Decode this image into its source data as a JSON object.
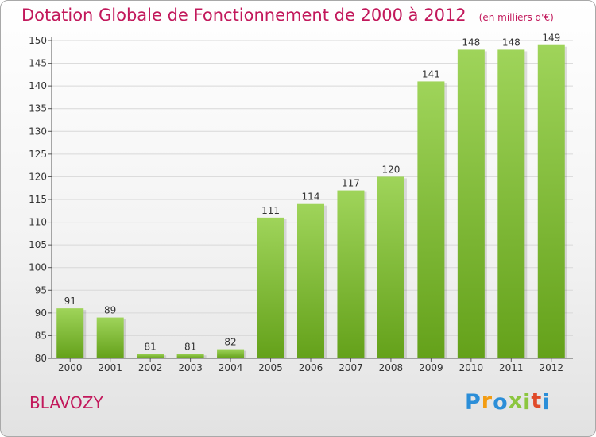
{
  "header": {
    "title": "Dotation Globale de Fonctionnement de 2000 à 2012",
    "unit": "(en milliers d'€)"
  },
  "footer": {
    "commune": "BLAVOZY",
    "logo": {
      "letters": [
        "P",
        "r",
        "o",
        "x",
        "i",
        "t",
        "i"
      ],
      "colors": [
        "#2b8ed8",
        "#f39c12",
        "#2b8ed8",
        "#8cc63f",
        "#8cc63f",
        "#e04b2a",
        "#2b8ed8"
      ]
    }
  },
  "colors": {
    "bar_light": "#9fd45a",
    "bar_dark": "#64a11a",
    "axis": "#555555",
    "grid": "#d8d8d8"
  },
  "chart_data": {
    "type": "bar",
    "title": "Dotation Globale de Fonctionnement de 2000 à 2012",
    "categories": [
      "2000",
      "2001",
      "2002",
      "2003",
      "2004",
      "2005",
      "2006",
      "2007",
      "2008",
      "2009",
      "2010",
      "2011",
      "2012"
    ],
    "values": [
      91,
      89,
      81,
      81,
      82,
      111,
      114,
      117,
      120,
      141,
      148,
      148,
      149
    ],
    "ylim": [
      80,
      150
    ],
    "yticks": [
      80,
      85,
      90,
      95,
      100,
      105,
      110,
      115,
      120,
      125,
      130,
      135,
      140,
      145,
      150
    ],
    "grid": true
  }
}
